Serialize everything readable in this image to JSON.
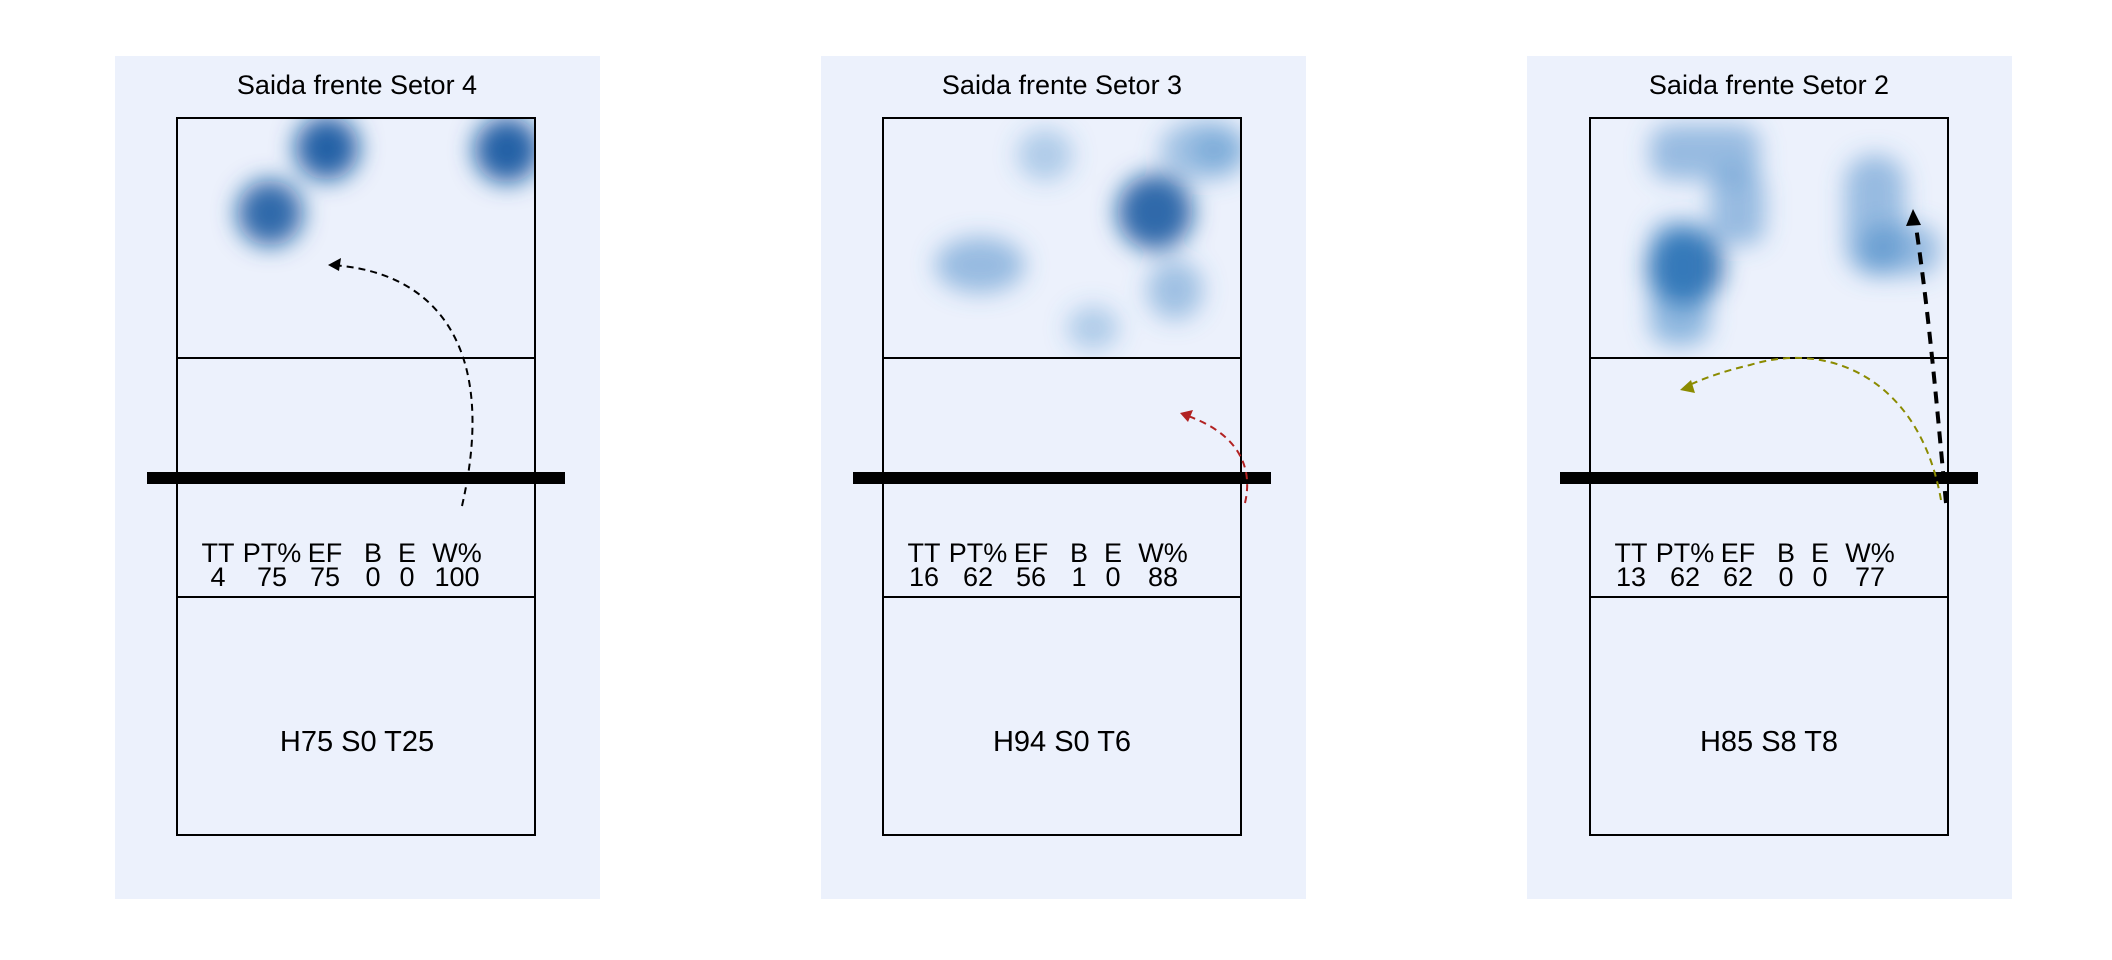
{
  "chart_data": [
    {
      "type": "heatmap",
      "title": "Saida frente Setor 4",
      "stat_headers": [
        "TT",
        "PT%",
        "EF",
        "B",
        "E",
        "W%"
      ],
      "stat_values": [
        "4",
        "75",
        "75",
        "0",
        "0",
        "100"
      ],
      "footer": "H75 S0 T25",
      "colors": {
        "panel": "#ecf1fc",
        "heat": "#08519c"
      }
    },
    {
      "type": "heatmap",
      "title": "Saida frente Setor 3",
      "stat_headers": [
        "TT",
        "PT%",
        "EF",
        "B",
        "E",
        "W%"
      ],
      "stat_values": [
        "16",
        "62",
        "56",
        "1",
        "0",
        "88"
      ],
      "footer": "H94 S0 T6",
      "colors": {
        "panel": "#ecf1fc",
        "heat": "#08519c"
      }
    },
    {
      "type": "heatmap",
      "title": "Saida frente Setor 2",
      "stat_headers": [
        "TT",
        "PT%",
        "EF",
        "B",
        "E",
        "W%"
      ],
      "stat_values": [
        "13",
        "62",
        "62",
        "0",
        "0",
        "77"
      ],
      "footer": "H85 S8 T8",
      "colors": {
        "panel": "#ecf1fc",
        "heat": "#08519c"
      }
    }
  ]
}
